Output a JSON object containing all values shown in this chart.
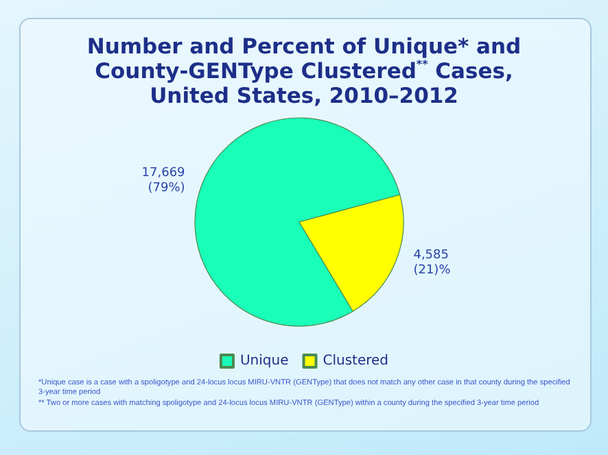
{
  "chart_data": {
    "type": "pie",
    "title": "Number and Percent of Unique* and\nCounty-GENType Clustered$^{**}$ Cases,\nUnited States, 2010–2012",
    "categories": [
      "Unique",
      "Clustered"
    ],
    "values": [
      17669,
      4585
    ],
    "colors": [
      "#1affb8",
      "#ffff00"
    ],
    "value_labels": [
      "17,669\n(79%)",
      "4,585\n(21)%"
    ],
    "legend": "bottom",
    "annotations": [
      "*Unique case is a case with a spoligotype and 24-locus locus MIRU-VNTR (GENType) that does not match any other case in that county during the specified 3-year time period",
      "** Two or more cases with matching spoligotype and 24-locus locus MIRU-VNTR (GENType) within a county during the specified 3-year time period"
    ]
  }
}
